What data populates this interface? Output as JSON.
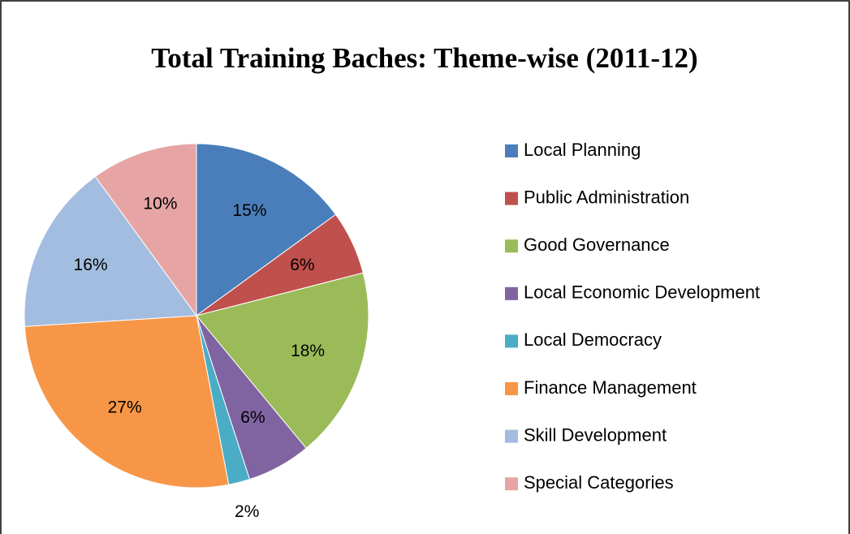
{
  "chart_data": {
    "type": "pie",
    "title": "Total Training Baches: Theme-wise (2011-12)",
    "categories": [
      "Local Planning",
      "Public Administration",
      "Good Governance",
      "Local Economic Development",
      "Local Democracy",
      "Finance Management",
      "Skill Development",
      "Special Categories"
    ],
    "values": [
      15,
      6,
      18,
      6,
      2,
      27,
      16,
      10
    ],
    "value_labels": [
      "15%",
      "6%",
      "18%",
      "6%",
      "2%",
      "27%",
      "16%",
      "10%"
    ],
    "colors": [
      "#4a7ebb",
      "#c0504d",
      "#9bbb59",
      "#8064a2",
      "#4bacc6",
      "#f79646",
      "#a2bddf",
      "#e6a5a4"
    ],
    "legend": "right"
  }
}
